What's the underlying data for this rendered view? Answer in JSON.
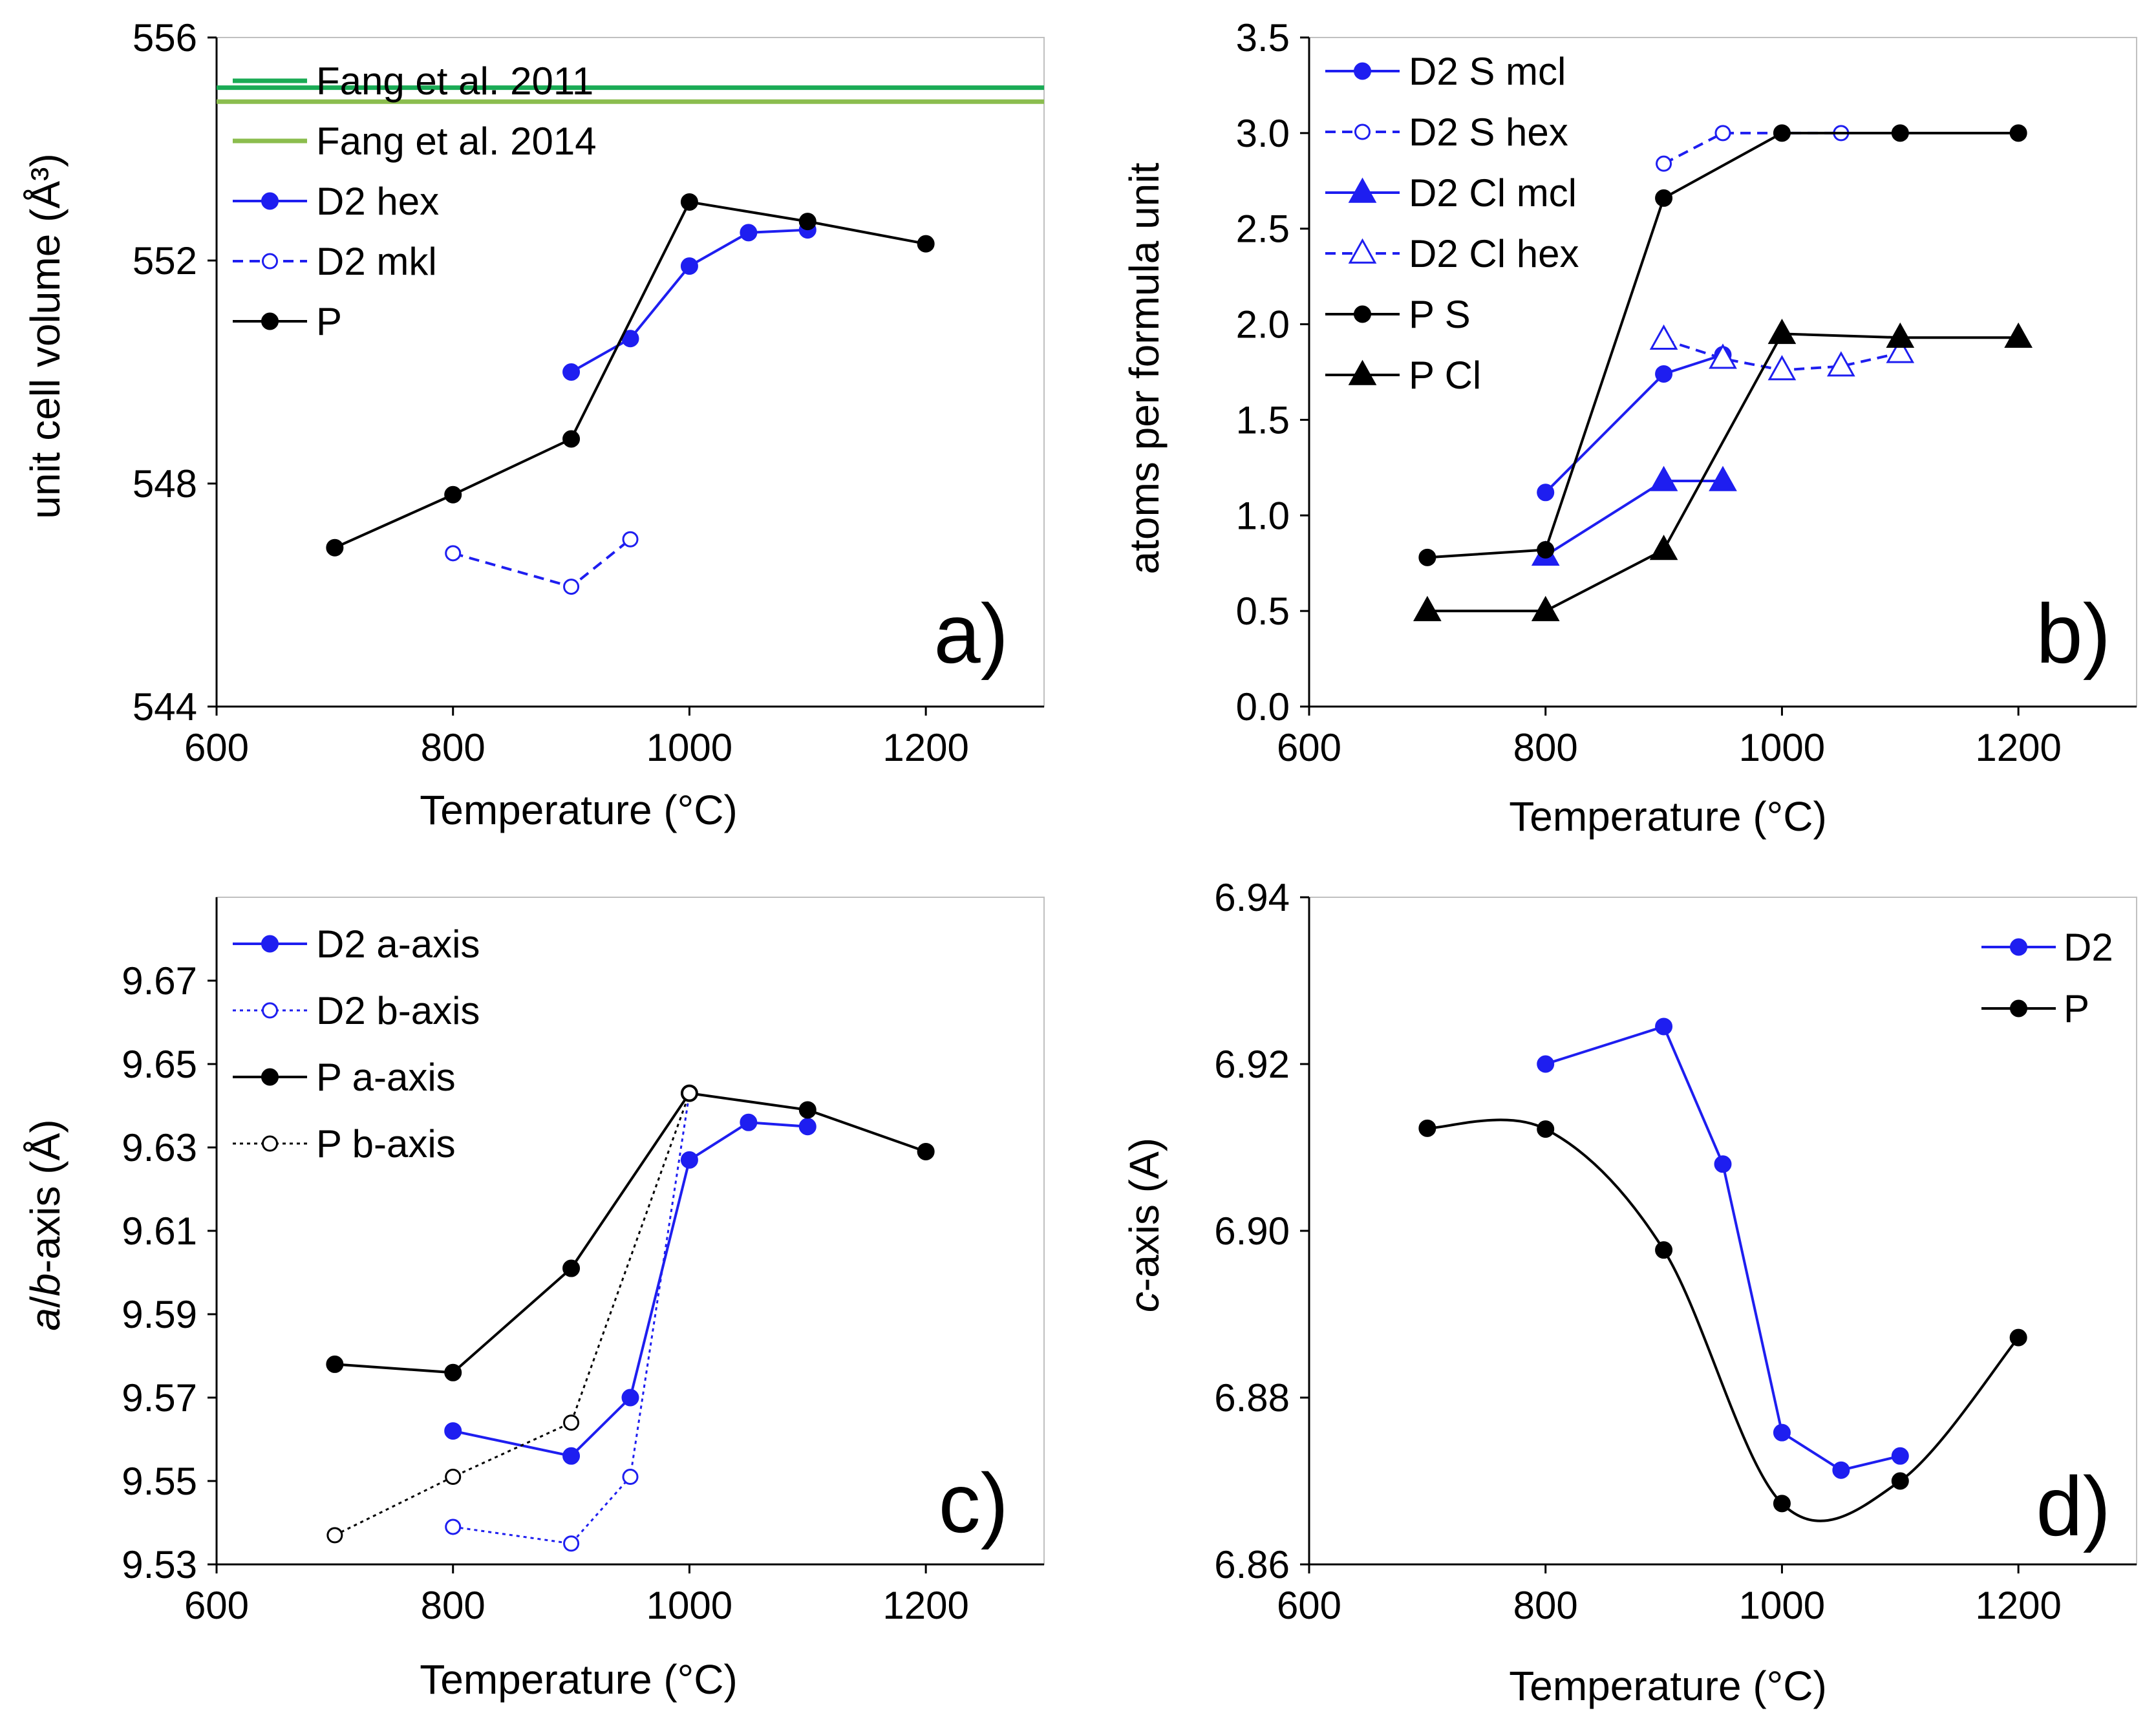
{
  "figure": {
    "panels": [
      "a",
      "b",
      "c",
      "d"
    ]
  },
  "chart_data": [
    {
      "id": "a",
      "type": "line",
      "panel_label": "a)",
      "xlabel": "Temperature (°C)",
      "ylabel": "unit cell volume (Å³)",
      "xlim": [
        600,
        1300
      ],
      "ylim": [
        544,
        556
      ],
      "xticks": [
        600,
        800,
        1000,
        1200
      ],
      "yticks": [
        544,
        548,
        552,
        556
      ],
      "xtick_labels": [
        "600",
        "800",
        "1000",
        "1200"
      ],
      "ytick_labels": [
        "544",
        "548",
        "552",
        "556"
      ],
      "grid": false,
      "legend": "top-left",
      "hlines": [
        {
          "name": "Fang et al. 2014",
          "y": 554.85,
          "color": "#8bbd4e"
        },
        {
          "name": "Fang et al. 2011",
          "y": 555.1,
          "color": "#1aab55"
        }
      ],
      "series": [
        {
          "name": "D2 hex",
          "color": "#1e1ef0",
          "dash": "solid",
          "marker": "circle",
          "filled": true,
          "x": [
            900,
            950,
            1000,
            1050,
            1100
          ],
          "y": [
            550.0,
            550.6,
            551.9,
            552.5,
            552.55
          ]
        },
        {
          "name": "D2 mkl",
          "color": "#1e1ef0",
          "dash": "dashed",
          "marker": "circle",
          "filled": false,
          "x": [
            800,
            900,
            950
          ],
          "y": [
            546.75,
            546.15,
            547.0
          ]
        },
        {
          "name": "P",
          "color": "#000000",
          "dash": "solid",
          "marker": "circle",
          "filled": true,
          "x": [
            700,
            800,
            900,
            1000,
            1100,
            1200
          ],
          "y": [
            546.85,
            547.8,
            548.8,
            553.05,
            552.7,
            552.3
          ]
        }
      ]
    },
    {
      "id": "b",
      "type": "line",
      "panel_label": "b)",
      "xlabel": "Temperature (°C)",
      "ylabel": "atoms per formula unit",
      "xlim": [
        600,
        1300
      ],
      "ylim": [
        0,
        3.5
      ],
      "xticks": [
        600,
        800,
        1000,
        1200
      ],
      "yticks": [
        0,
        0.5,
        1,
        1.5,
        2,
        2.5,
        3,
        3.5
      ],
      "xtick_labels": [
        "600",
        "800",
        "1000",
        "1200"
      ],
      "ytick_labels": [
        "0.0",
        "0.5",
        "1.0",
        "1.5",
        "2.0",
        "2.5",
        "3.0",
        "3.5"
      ],
      "grid": false,
      "legend": "top-left",
      "series": [
        {
          "name": "D2 S mcl",
          "color": "#1e1ef0",
          "dash": "solid",
          "marker": "circle",
          "filled": true,
          "x": [
            800,
            900,
            950
          ],
          "y": [
            1.12,
            1.74,
            1.84
          ]
        },
        {
          "name": "D2 S hex",
          "color": "#1e1ef0",
          "dash": "dashed",
          "marker": "circle",
          "filled": false,
          "x": [
            900,
            950,
            1000,
            1050
          ],
          "y": [
            2.84,
            3.0,
            3.0,
            3.0
          ]
        },
        {
          "name": "D2 Cl mcl",
          "color": "#1e1ef0",
          "dash": "solid",
          "marker": "triangle",
          "filled": true,
          "x": [
            800,
            900,
            950
          ],
          "y": [
            0.79,
            1.18,
            1.18
          ]
        },
        {
          "name": "D2 Cl hex",
          "color": "#1e1ef0",
          "dash": "dashed",
          "marker": "triangle",
          "filled": false,
          "x": [
            900,
            950,
            1000,
            1050,
            1100
          ],
          "y": [
            1.92,
            1.82,
            1.76,
            1.78,
            1.85
          ]
        },
        {
          "name": "P S",
          "color": "#000000",
          "dash": "solid",
          "marker": "circle",
          "filled": true,
          "x": [
            700,
            800,
            900,
            1000,
            1100,
            1200
          ],
          "y": [
            0.78,
            0.82,
            2.66,
            3.0,
            3.0,
            3.0
          ]
        },
        {
          "name": "P Cl",
          "color": "#000000",
          "dash": "solid",
          "marker": "triangle",
          "filled": true,
          "x": [
            700,
            800,
            900,
            1000,
            1100,
            1200
          ],
          "y": [
            0.5,
            0.5,
            0.82,
            1.95,
            1.93,
            1.93
          ]
        }
      ]
    },
    {
      "id": "c",
      "type": "line",
      "panel_label": "c)",
      "xlabel": "Temperature (°C)",
      "ylabel": "a/b-axis (Å)",
      "xlim": [
        600,
        1300
      ],
      "ylim": [
        9.53,
        9.69
      ],
      "xticks": [
        600,
        800,
        1000,
        1200
      ],
      "yticks": [
        9.53,
        9.55,
        9.57,
        9.59,
        9.61,
        9.63,
        9.65,
        9.67
      ],
      "xtick_labels": [
        "600",
        "800",
        "1000",
        "1200"
      ],
      "ytick_labels": [
        "9.53",
        "9.55",
        "9.57",
        "9.59",
        "9.61",
        "9.63",
        "9.65",
        "9.67"
      ],
      "grid": false,
      "legend": "top-left",
      "series": [
        {
          "name": "D2 a-axis",
          "color": "#1e1ef0",
          "dash": "solid",
          "marker": "circle",
          "filled": true,
          "x": [
            800,
            900,
            950,
            1000,
            1050,
            1100
          ],
          "y": [
            9.562,
            9.556,
            9.57,
            9.627,
            9.636,
            9.635
          ]
        },
        {
          "name": "D2 b-axis",
          "color": "#1e1ef0",
          "dash": "dotted",
          "marker": "circle",
          "filled": false,
          "x": [
            800,
            900,
            950,
            1000
          ],
          "y": [
            9.539,
            9.535,
            9.551,
            9.643
          ]
        },
        {
          "name": "P a-axis",
          "color": "#000000",
          "dash": "solid",
          "marker": "circle",
          "filled": true,
          "x": [
            700,
            800,
            900,
            1000,
            1100,
            1200
          ],
          "y": [
            9.578,
            9.576,
            9.601,
            9.643,
            9.639,
            9.629
          ]
        },
        {
          "name": "P b-axis",
          "color": "#000000",
          "dash": "dotted",
          "marker": "circle",
          "filled": false,
          "x": [
            700,
            800,
            900,
            1000
          ],
          "y": [
            9.537,
            9.551,
            9.564,
            9.643
          ]
        }
      ]
    },
    {
      "id": "d",
      "type": "line",
      "panel_label": "d)",
      "xlabel": "Temperature (°C)",
      "ylabel": "c-axis (A)",
      "xlim": [
        600,
        1300
      ],
      "ylim": [
        6.86,
        6.94
      ],
      "xticks": [
        600,
        800,
        1000,
        1200
      ],
      "yticks": [
        6.86,
        6.88,
        6.9,
        6.92,
        6.94
      ],
      "xtick_labels": [
        "600",
        "800",
        "1000",
        "1200"
      ],
      "ytick_labels": [
        "6.86",
        "6.88",
        "6.90",
        "6.92",
        "6.94"
      ],
      "grid": false,
      "legend": "top-right",
      "series": [
        {
          "name": "D2",
          "color": "#1e1ef0",
          "dash": "solid",
          "marker": "circle",
          "filled": true,
          "smooth": false,
          "x": [
            800,
            900,
            950,
            1000,
            1050,
            1100
          ],
          "y": [
            6.92,
            6.9245,
            6.908,
            6.8758,
            6.8713,
            6.873
          ]
        },
        {
          "name": "P",
          "color": "#000000",
          "dash": "solid",
          "marker": "circle",
          "filled": true,
          "smooth": true,
          "x": [
            700,
            800,
            900,
            1000,
            1100,
            1200
          ],
          "y": [
            6.9123,
            6.9122,
            6.8977,
            6.8673,
            6.87,
            6.8872
          ]
        }
      ]
    }
  ]
}
